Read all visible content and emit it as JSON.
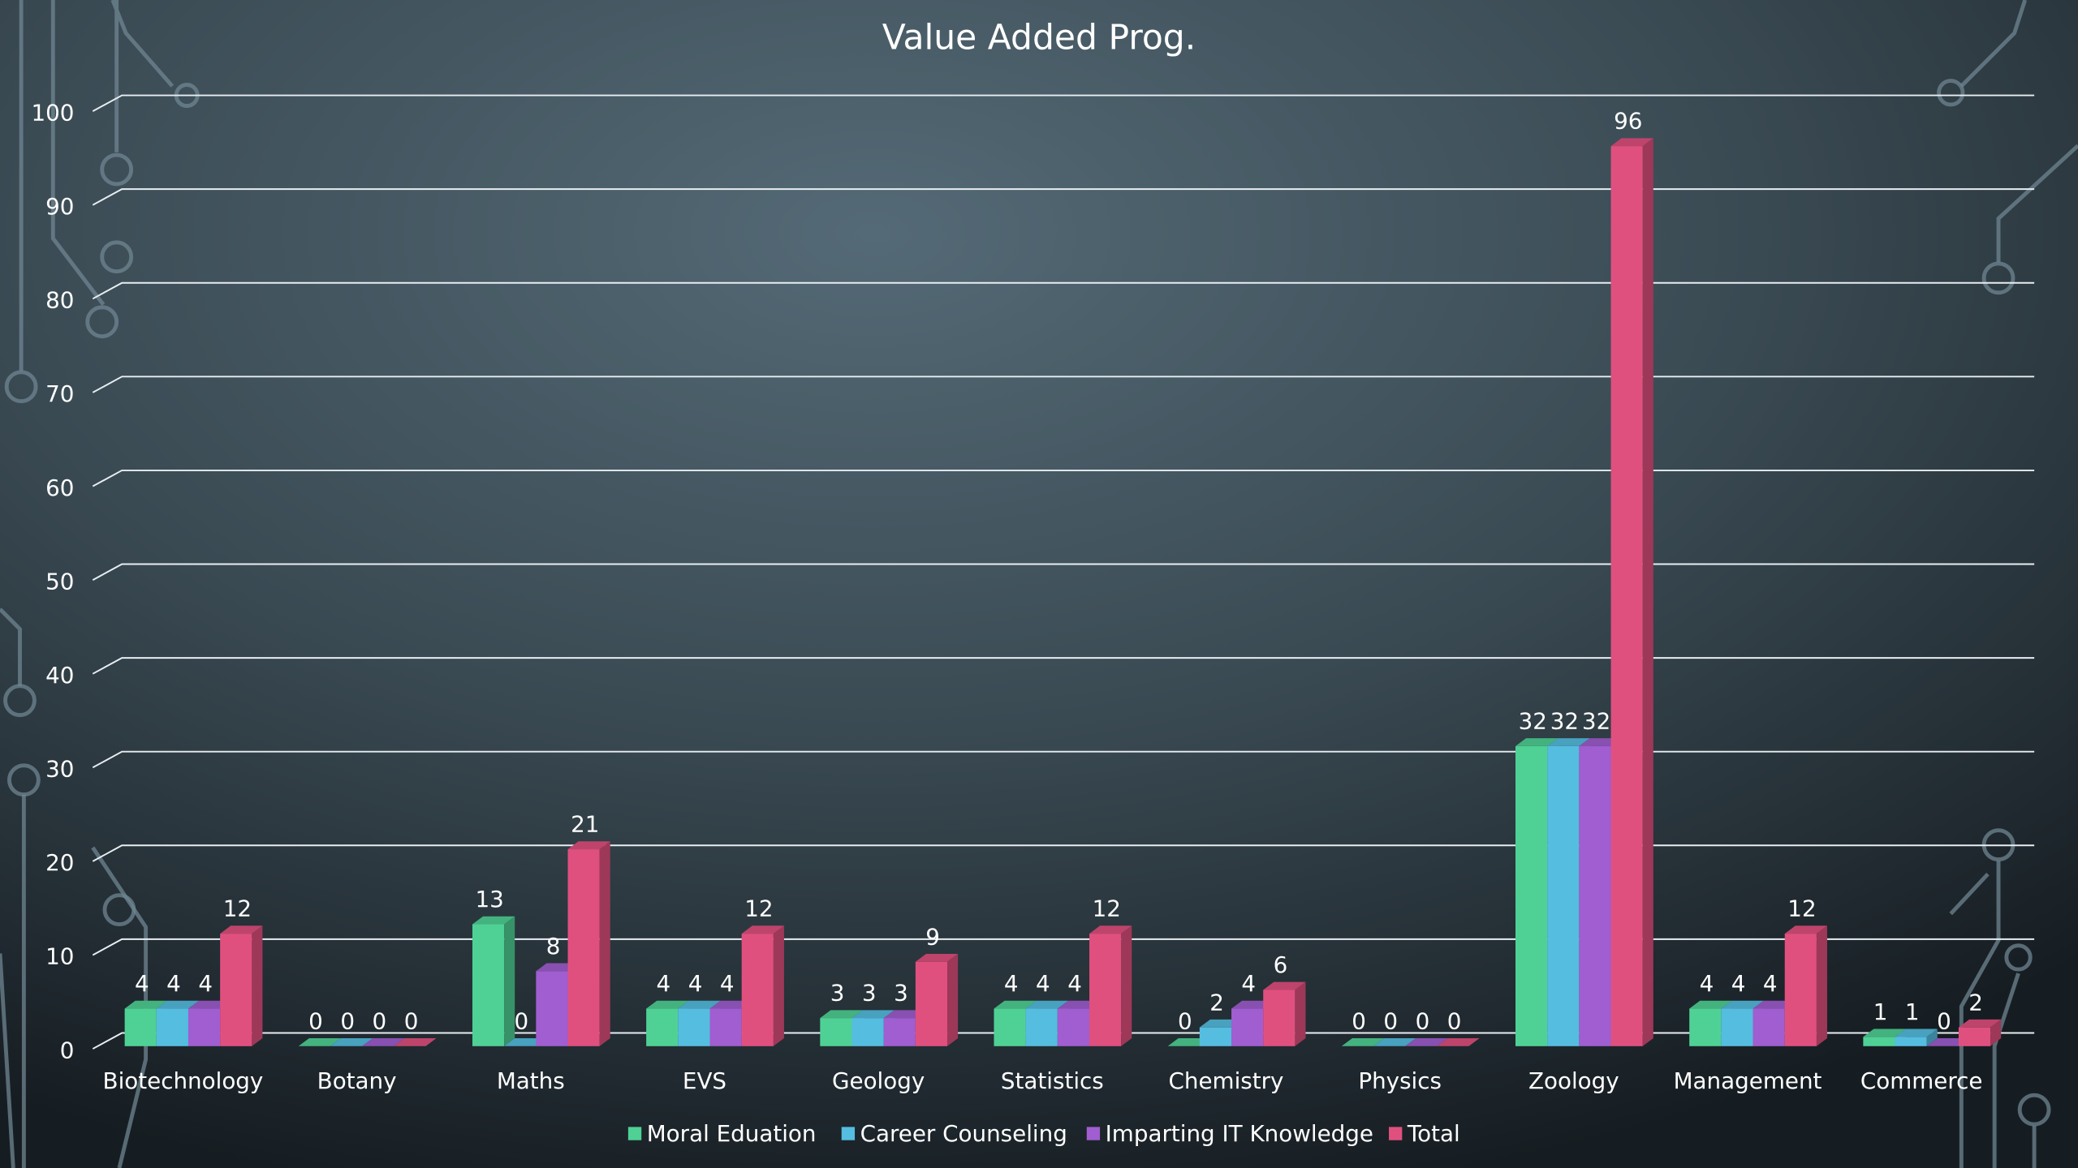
{
  "chart_data": {
    "type": "bar3d",
    "title": "Value Added Prog.",
    "categories": [
      "Biotechnology",
      "Botany",
      "Maths",
      "EVS",
      "Geology",
      "Statistics",
      "Chemistry",
      "Physics",
      "Zoology",
      "Management",
      "Commerce"
    ],
    "series": [
      {
        "name": "Moral Eduation",
        "color": "#4fd195",
        "values": [
          4,
          0,
          13,
          4,
          3,
          4,
          0,
          0,
          32,
          4,
          1
        ]
      },
      {
        "name": "Career Counseling",
        "color": "#55bde0",
        "values": [
          4,
          0,
          0,
          4,
          3,
          4,
          2,
          0,
          32,
          4,
          1
        ]
      },
      {
        "name": "Imparting IT Knowledge",
        "color": "#a05ed0",
        "values": [
          4,
          0,
          8,
          4,
          3,
          4,
          4,
          0,
          32,
          4,
          0
        ]
      },
      {
        "name": "Total",
        "color": "#e0507f",
        "values": [
          12,
          0,
          21,
          12,
          9,
          12,
          6,
          0,
          96,
          12,
          2
        ]
      }
    ],
    "ylim": [
      0,
      100
    ],
    "yticks": [
      0,
      10,
      20,
      30,
      40,
      50,
      60,
      70,
      80,
      90,
      100
    ],
    "grid": true,
    "legend": "bottom"
  }
}
